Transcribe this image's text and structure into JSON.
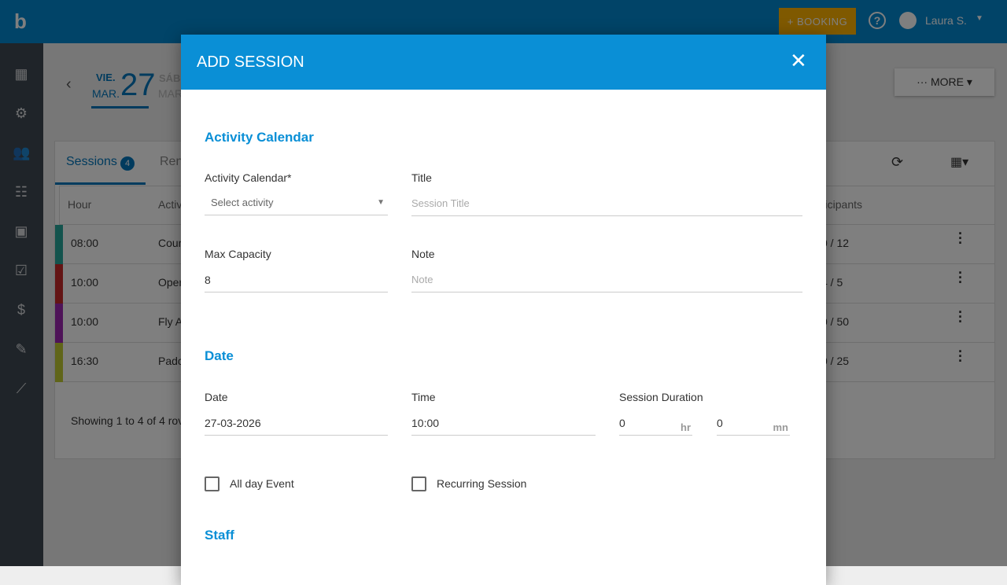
{
  "topbar": {
    "logo": "b",
    "booking_label": "+ BOOKING",
    "help_icon": "?",
    "user_name": "Laura S."
  },
  "sidebar": {
    "icons": [
      "dashboard-icon",
      "gear-icon",
      "people-icon",
      "group-icon",
      "calendar-icon",
      "checklist-icon",
      "invoice-icon",
      "edit-document-icon",
      "chart-icon"
    ]
  },
  "date_nav": {
    "current": {
      "weekday": "VIE.",
      "month": "MAR.",
      "day": "27"
    },
    "next": {
      "weekday": "SÁB",
      "month": "MAR"
    }
  },
  "more_label": "··· MORE ▾",
  "tabs": [
    {
      "label": "Sessions",
      "badge": "4"
    },
    {
      "label": "Ren"
    }
  ],
  "table": {
    "headers": [
      "Hour",
      "Activ",
      "rticipants"
    ],
    "rows": [
      {
        "hour": "08:00",
        "activity": "Cour",
        "participants": "0 / 12",
        "color": "#26a69a"
      },
      {
        "hour": "10:00",
        "activity": "Oper",
        "participants": "4 / 5",
        "color": "#c62828"
      },
      {
        "hour": "10:00",
        "activity": "Fly A",
        "participants": "0 / 50",
        "color": "#9c27b0"
      },
      {
        "hour": "16:30",
        "activity": "Padc",
        "participants": "0 / 25",
        "color": "#c0ca33"
      }
    ],
    "footer": "Showing 1 to 4 of 4 rov"
  },
  "modal": {
    "title": "ADD SESSION",
    "close": "✕",
    "section_activity": "Activity Calendar",
    "activity_label": "Activity Calendar*",
    "activity_value": "Select activity",
    "title_label": "Title",
    "title_placeholder": "Session Title",
    "capacity_label": "Max Capacity",
    "capacity_value": "8",
    "note_label": "Note",
    "note_placeholder": "Note",
    "section_date": "Date",
    "date_label": "Date",
    "date_value": "27-03-2026",
    "time_label": "Time",
    "time_value": "10:00",
    "duration_label": "Session Duration",
    "hours_value": "0",
    "hours_unit": "hr",
    "minutes_value": "0",
    "minutes_unit": "mn",
    "allday_label": "All day Event",
    "allday_checked": false,
    "recurring_label": "Recurring Session",
    "recurring_checked": false,
    "section_staff": "Staff"
  },
  "colors": {
    "header": "#0288d1",
    "modal_header": "#0a8fd6",
    "accent": "#0277bd",
    "booking": "#ffb300"
  }
}
